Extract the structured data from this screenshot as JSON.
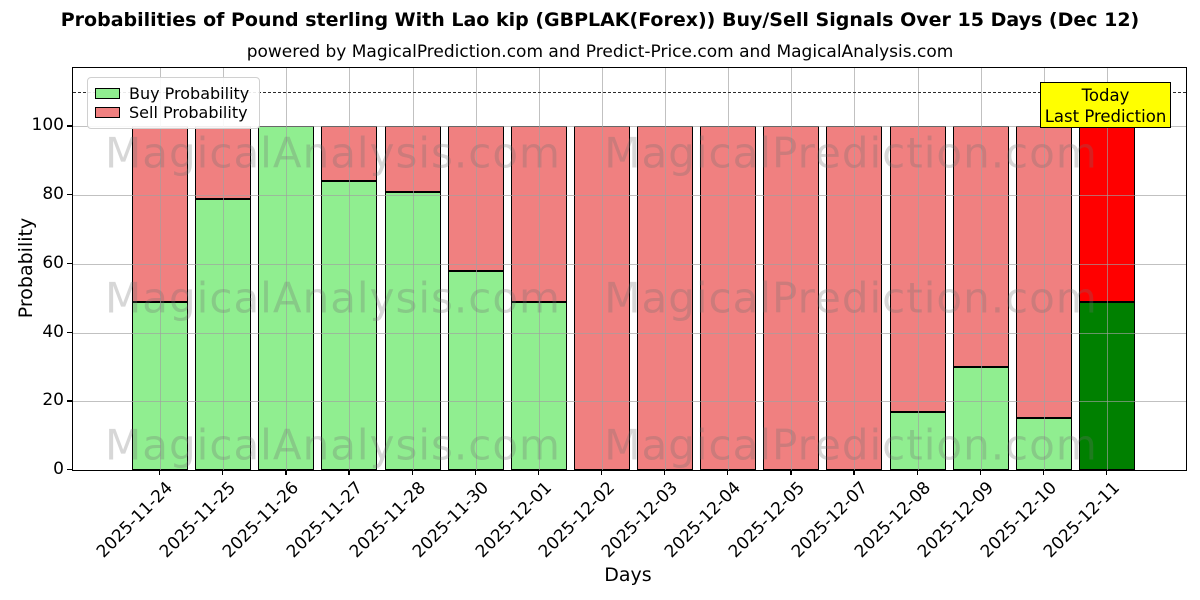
{
  "title": "Probabilities of Pound sterling With Lao kip (GBPLAK(Forex)) Buy/Sell Signals Over 15 Days (Dec 12)",
  "subtitle": "powered by MagicalPrediction.com and Predict-Price.com and MagicalAnalysis.com",
  "watermarks": {
    "left_text": "MagicalAnalysis.com",
    "right_text": "MagicalPrediction.com"
  },
  "annotation": {
    "line1": "Today",
    "line2": "Last Prediction",
    "bg_color": "#FFFF00"
  },
  "legend": [
    {
      "label": "Buy Probability",
      "color": "#90EE90"
    },
    {
      "label": "Sell Probability",
      "color": "#F08080"
    }
  ],
  "axes": {
    "ylabel": "Probability",
    "xlabel": "Days",
    "yticks": [
      0,
      20,
      40,
      60,
      80,
      100
    ],
    "ylim": [
      0,
      117
    ],
    "dashed_line_y": 110,
    "grid": true
  },
  "colors": {
    "buy": "#90EE90",
    "sell": "#F08080",
    "today_buy": "#008000",
    "today_sell": "#FF0000",
    "bar_edge": "#000000",
    "grid": "#b0b0b0",
    "annotation_bg": "#FFFF00"
  },
  "chart_data": {
    "type": "bar",
    "stacked": true,
    "title": "Probabilities of Pound sterling With Lao kip (GBPLAK(Forex)) Buy/Sell Signals Over 15 Days (Dec 12)",
    "xlabel": "Days",
    "ylabel": "Probability",
    "ylim": [
      0,
      117
    ],
    "legend_position": "upper left",
    "categories": [
      "2025-11-24",
      "2025-11-25",
      "2025-11-26",
      "2025-11-27",
      "2025-11-28",
      "2025-11-30",
      "2025-12-01",
      "2025-12-02",
      "2025-12-03",
      "2025-12-04",
      "2025-12-05",
      "2025-12-07",
      "2025-12-08",
      "2025-12-09",
      "2025-12-10",
      "2025-12-11"
    ],
    "series": [
      {
        "name": "Buy Probability",
        "values": [
          49,
          79,
          100,
          84,
          81,
          58,
          49,
          0,
          0,
          0,
          0,
          0,
          17,
          30,
          15,
          49
        ]
      },
      {
        "name": "Sell Probability",
        "values": [
          51,
          21,
          0,
          16,
          19,
          42,
          51,
          100,
          100,
          100,
          100,
          100,
          83,
          70,
          85,
          51
        ]
      }
    ],
    "today_index": 15,
    "annotations": [
      {
        "text": "Today Last Prediction",
        "target_category": "2025-12-11"
      },
      {
        "type": "hline",
        "y": 110,
        "style": "dashed"
      }
    ]
  }
}
